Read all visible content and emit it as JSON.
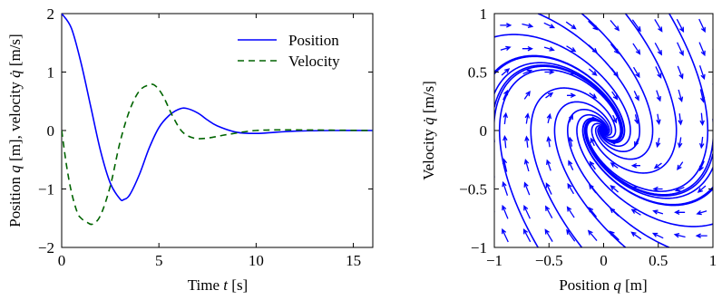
{
  "chart_data": [
    {
      "type": "line",
      "title": "",
      "xlabel_main": "Time ",
      "xlabel_var": "t",
      "xlabel_unit": " [s]",
      "ylabel_parts": [
        "Position ",
        "q",
        " [m], velocity ",
        "q̇",
        " [m/s]"
      ],
      "xlim": [
        0,
        16
      ],
      "ylim": [
        -2,
        2
      ],
      "xticks": [
        0,
        5,
        10,
        15
      ],
      "yticks": [
        -2,
        -1,
        0,
        1,
        2
      ],
      "legend_position": "top-right",
      "series": [
        {
          "name": "Position",
          "color": "#0000ff",
          "style": "solid",
          "x": [
            0,
            0.5,
            1.0,
            1.5,
            2.0,
            2.5,
            3.0,
            3.2,
            3.5,
            4.0,
            4.5,
            5.0,
            5.5,
            6.0,
            6.4,
            7.0,
            7.5,
            8.0,
            9.0,
            10.0,
            11.0,
            12.0,
            14.0,
            16.0
          ],
          "values": [
            2.0,
            1.75,
            1.15,
            0.4,
            -0.35,
            -0.9,
            -1.17,
            -1.18,
            -1.1,
            -0.75,
            -0.3,
            0.05,
            0.25,
            0.36,
            0.38,
            0.3,
            0.18,
            0.08,
            -0.03,
            -0.05,
            -0.03,
            -0.01,
            0.0,
            0.0
          ]
        },
        {
          "name": "Velocity",
          "color": "#006400",
          "style": "dashed",
          "x": [
            0,
            0.25,
            0.5,
            0.8,
            1.0,
            1.3,
            1.6,
            2.0,
            2.5,
            3.0,
            3.5,
            4.0,
            4.5,
            4.8,
            5.2,
            5.7,
            6.2,
            6.8,
            7.5,
            8.5,
            10.0,
            12.0,
            16.0
          ],
          "values": [
            0.0,
            -0.6,
            -1.05,
            -1.4,
            -1.5,
            -1.57,
            -1.6,
            -1.45,
            -0.95,
            -0.2,
            0.35,
            0.68,
            0.78,
            0.77,
            0.6,
            0.25,
            -0.02,
            -0.13,
            -0.13,
            -0.07,
            0.0,
            0.01,
            0.0
          ]
        }
      ]
    },
    {
      "type": "quiver",
      "title": "",
      "xlabel_main": "Position ",
      "xlabel_var": "q",
      "xlabel_unit": " [m]",
      "ylabel_parts": [
        "Velocity ",
        "q̇",
        " [m/s]"
      ],
      "xlim": [
        -1,
        1
      ],
      "ylim": [
        -1,
        1
      ],
      "xticks": [
        -1,
        -0.5,
        0,
        0.5,
        1
      ],
      "xticklabels": [
        "−1",
        "−0.5",
        "0",
        "0.5",
        "1"
      ],
      "yticks": [
        -1,
        -0.5,
        0,
        0.5,
        1
      ],
      "yticklabels": [
        "−1",
        "−0.5",
        "0",
        "0.5",
        "1"
      ],
      "color": "#0000ff",
      "system": {
        "damping": 1,
        "stiffness": 1
      },
      "trajectory_starts": [
        [
          -1,
          0.8
        ],
        [
          -1,
          0.5
        ],
        [
          -1,
          0.2
        ],
        [
          -1,
          -0.1
        ],
        [
          -1,
          -0.4
        ],
        [
          -1,
          -0.7
        ],
        [
          -0.6,
          1
        ],
        [
          -0.2,
          1
        ],
        [
          0.2,
          1
        ],
        [
          0.6,
          1
        ],
        [
          1,
          -0.8
        ],
        [
          1,
          -0.5
        ],
        [
          1,
          -0.2
        ],
        [
          1,
          0.1
        ],
        [
          1,
          0.4
        ],
        [
          1,
          0.7
        ],
        [
          0.6,
          -1
        ],
        [
          0.2,
          -1
        ],
        [
          -0.2,
          -1
        ],
        [
          -0.6,
          -1
        ]
      ],
      "arrow_grid_step": 0.2
    }
  ]
}
